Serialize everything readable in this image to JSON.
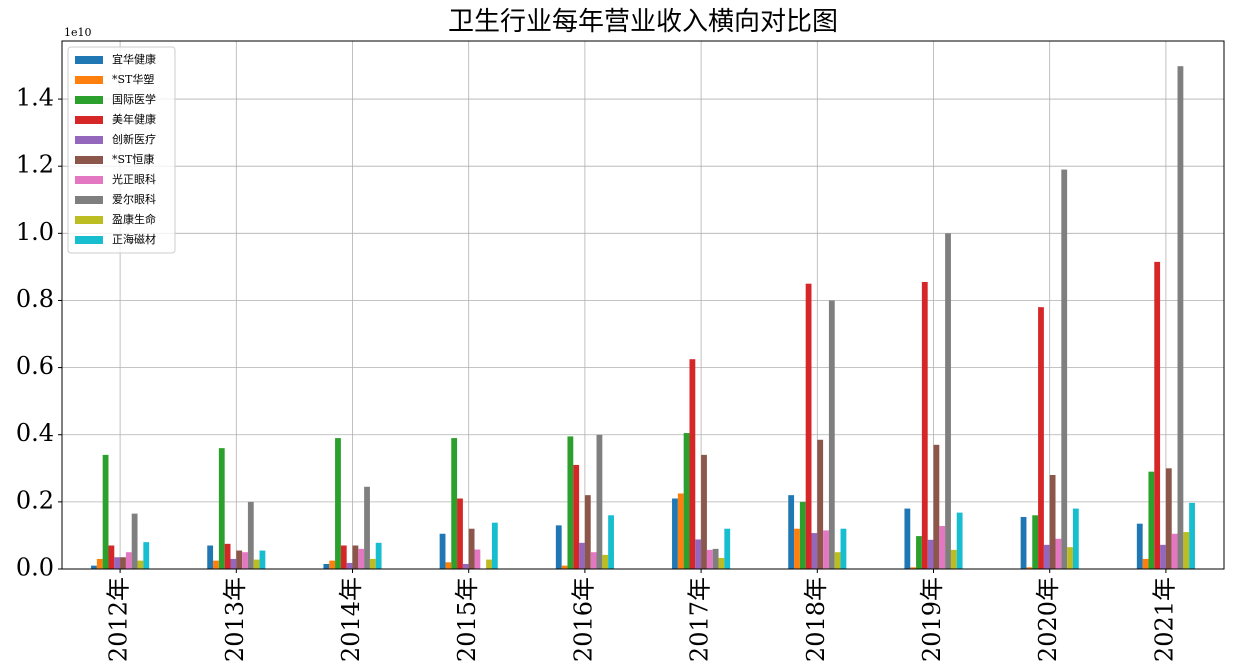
{
  "chart_data": {
    "type": "bar",
    "title": "卫生行业每年营业收入横向对比图",
    "y_offset_label": "1e10",
    "categories": [
      "2012年",
      "2013年",
      "2014年",
      "2015年",
      "2016年",
      "2017年",
      "2018年",
      "2019年",
      "2020年",
      "2021年"
    ],
    "series": [
      {
        "name": "宜华健康",
        "color": "#1f77b4",
        "values": [
          0.01,
          0.07,
          0.015,
          0.105,
          0.13,
          0.21,
          0.22,
          0.18,
          0.155,
          0.135
        ]
      },
      {
        "name": "*ST华塑",
        "color": "#ff7f0e",
        "values": [
          0.03,
          0.025,
          0.025,
          0.02,
          0.01,
          0.225,
          0.12,
          0.005,
          0.005,
          0.03
        ]
      },
      {
        "name": "国际医学",
        "color": "#2ca02c",
        "values": [
          0.34,
          0.36,
          0.39,
          0.39,
          0.395,
          0.405,
          0.2,
          0.098,
          0.16,
          0.29
        ]
      },
      {
        "name": "美年健康",
        "color": "#d62728",
        "values": [
          0.07,
          0.075,
          0.07,
          0.21,
          0.31,
          0.625,
          0.85,
          0.855,
          0.78,
          0.915
        ]
      },
      {
        "name": "创新医疗",
        "color": "#9467bd",
        "values": [
          0.035,
          0.03,
          0.018,
          0.015,
          0.078,
          0.088,
          0.107,
          0.087,
          0.072,
          0.072
        ]
      },
      {
        "name": "*ST恒康",
        "color": "#8c564b",
        "values": [
          0.035,
          0.055,
          0.07,
          0.12,
          0.22,
          0.34,
          0.385,
          0.37,
          0.28,
          0.3
        ]
      },
      {
        "name": "光正眼科",
        "color": "#e377c2",
        "values": [
          0.05,
          0.05,
          0.06,
          0.058,
          0.05,
          0.057,
          0.115,
          0.128,
          0.09,
          0.105
        ]
      },
      {
        "name": "爱尔眼科",
        "color": "#7f7f7f",
        "values": [
          0.165,
          0.2,
          0.245,
          0,
          0.4,
          0.06,
          0.8,
          1.0,
          1.19,
          1.498
        ]
      },
      {
        "name": "盈康生命",
        "color": "#bcbd22",
        "values": [
          0.025,
          0.028,
          0.03,
          0.028,
          0.042,
          0.033,
          0.05,
          0.057,
          0.065,
          0.11
        ]
      },
      {
        "name": "正海磁材",
        "color": "#17becf",
        "values": [
          0.08,
          0.055,
          0.078,
          0.138,
          0.16,
          0.12,
          0.12,
          0.168,
          0.18,
          0.197
        ]
      }
    ],
    "ylim": [
      0,
      1.573
    ],
    "yticks": [
      {
        "value": 0,
        "label": "0.0"
      },
      {
        "value": 0.2,
        "label": "0.2"
      },
      {
        "value": 0.4,
        "label": "0.4"
      },
      {
        "value": 0.6,
        "label": "0.6"
      },
      {
        "value": 0.8,
        "label": "0.8"
      },
      {
        "value": 1.0,
        "label": "1.0"
      },
      {
        "value": 1.2,
        "label": "1.2"
      },
      {
        "value": 1.4,
        "label": "1.4"
      }
    ],
    "grid": true,
    "legend": "upper left"
  }
}
